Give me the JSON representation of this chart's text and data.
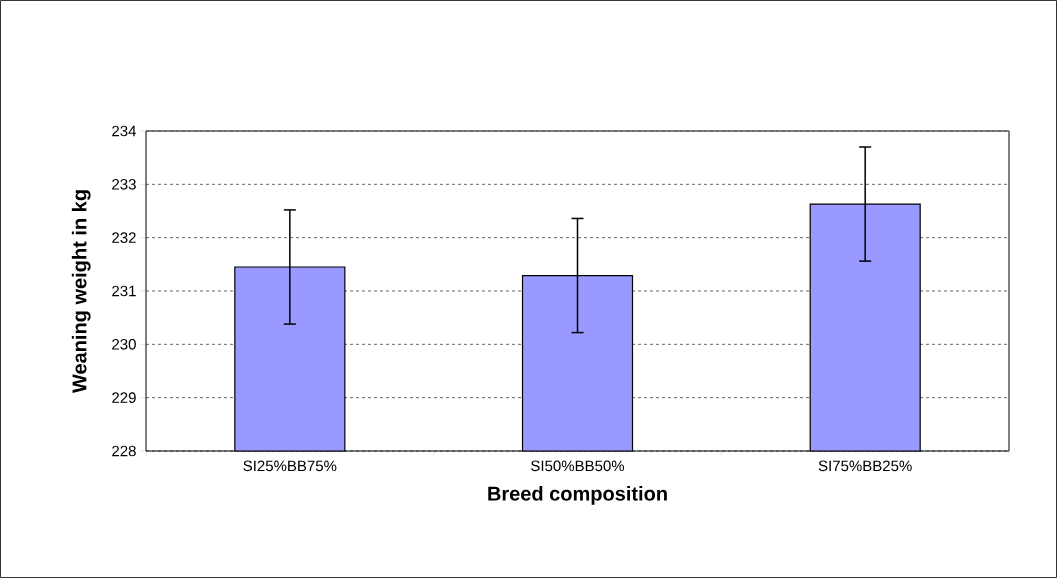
{
  "chart_data": {
    "type": "bar",
    "xlabel": "Breed composition",
    "ylabel": "Weaning weight in kg",
    "categories": [
      "SI25%BB75%",
      "SI50%BB50%",
      "SI75%BB25%"
    ],
    "values": [
      231.45,
      231.29,
      232.63
    ],
    "errors": [
      1.07,
      1.07,
      1.07
    ],
    "color": "#9999ff",
    "ylim": [
      228,
      234
    ],
    "yticks": [
      228,
      229,
      230,
      231,
      232,
      233,
      234
    ],
    "grid": "y"
  }
}
